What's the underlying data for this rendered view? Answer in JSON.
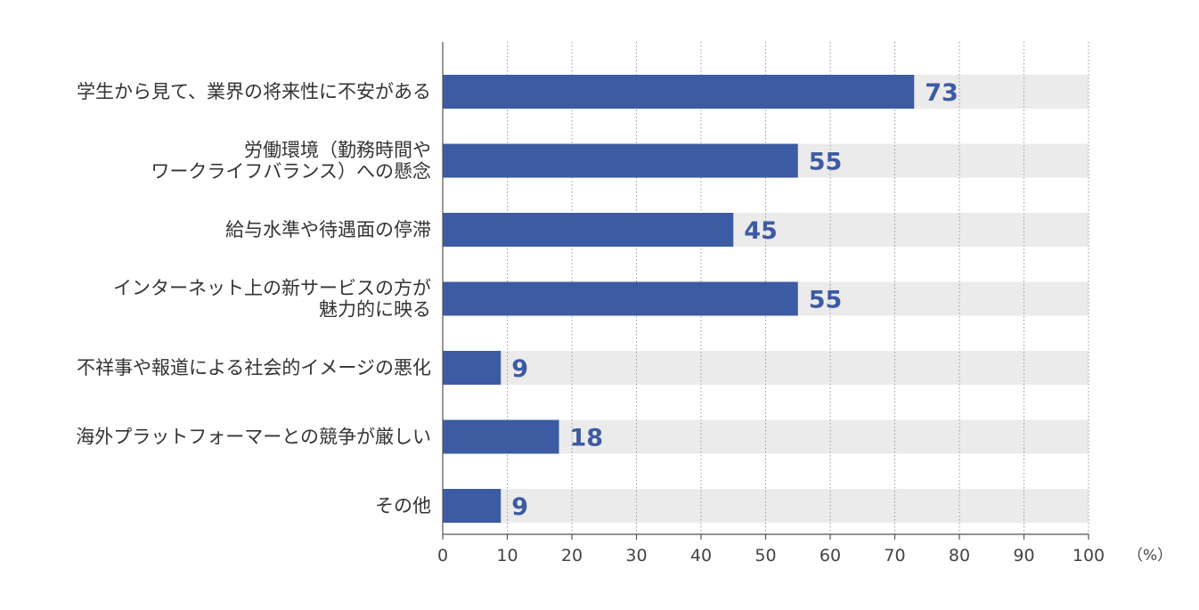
{
  "chart_data": {
    "type": "bar",
    "orientation": "horizontal",
    "categories": [
      [
        "学生から見て、業界の将来性に不安がある"
      ],
      [
        "労働環境（勤務時間や",
        "ワークライフバランス）への懸念"
      ],
      [
        "給与水準や待遇面の停滞"
      ],
      [
        "インターネット上の新サービスの方が",
        "魅力的に映る"
      ],
      [
        "不祥事や報道による社会的イメージの悪化"
      ],
      [
        "海外プラットフォーマーとの競争が厳しい"
      ],
      [
        "その他"
      ]
    ],
    "values": [
      73,
      55,
      45,
      55,
      9,
      18,
      9
    ],
    "xlim": [
      0,
      100
    ],
    "xticks": [
      0,
      10,
      20,
      30,
      40,
      50,
      60,
      70,
      80,
      90,
      100
    ],
    "unit": "（%）",
    "grid": true,
    "colors": {
      "bar": "#3d5ba3",
      "track": "#ebebeb",
      "value_text": "#3d5ba3",
      "grid": "#999999",
      "axis": "#555555"
    }
  }
}
